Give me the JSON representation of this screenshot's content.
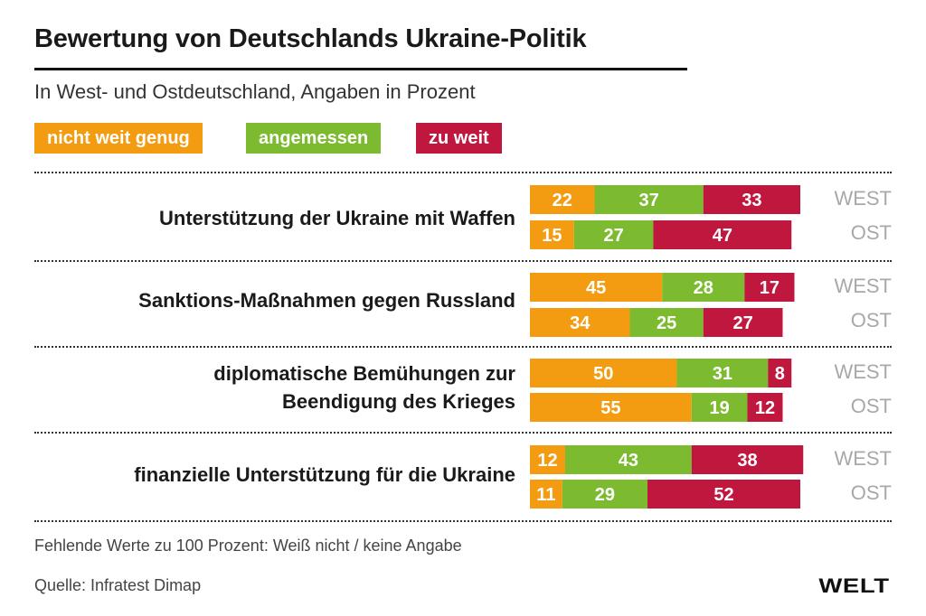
{
  "chart_data": {
    "type": "bar",
    "stacked": true,
    "orientation": "horizontal",
    "title": "Bewertung von Deutschlands Ukraine-Politik",
    "subtitle": "In West- und Ostdeutschland, Angaben in Prozent",
    "legend": [
      {
        "label": "nicht weit genug",
        "color": "#f39c12"
      },
      {
        "label": "angemessen",
        "color": "#7cbb2f"
      },
      {
        "label": "zu weit",
        "color": "#c0173f"
      }
    ],
    "categories": [
      "Unterstützung der Ukraine mit Waffen",
      "Sanktions-Maßnahmen gegen Russland",
      "diplomatische Bemühungen zur Beendigung des Krieges",
      "finanzielle Unterstützung für die Ukraine"
    ],
    "category_lines": [
      [
        "Unterstützung der Ukraine mit Waffen"
      ],
      [
        "Sanktions-Maßnahmen gegen Russland"
      ],
      [
        "diplomatische Bemühungen zur",
        "Beendigung des Krieges"
      ],
      [
        "finanzielle Unterstützung für die Ukraine"
      ]
    ],
    "regions": [
      "WEST",
      "OST"
    ],
    "series": [
      {
        "name": "nicht weit genug",
        "west": [
          22,
          45,
          50,
          12
        ],
        "ost": [
          15,
          34,
          55,
          11
        ]
      },
      {
        "name": "angemessen",
        "west": [
          37,
          28,
          31,
          43
        ],
        "ost": [
          27,
          25,
          19,
          29
        ]
      },
      {
        "name": "zu weit",
        "west": [
          33,
          17,
          8,
          38
        ],
        "ost": [
          47,
          27,
          12,
          52
        ]
      }
    ],
    "xlim": [
      0,
      100
    ],
    "grid": false,
    "legend_position": "top-left",
    "footnote": "Fehlende Werte zu 100 Prozent: Weiß nicht / keine Angabe",
    "source": "Quelle: Infratest Dimap"
  },
  "brand": {
    "logo": "WELT"
  }
}
